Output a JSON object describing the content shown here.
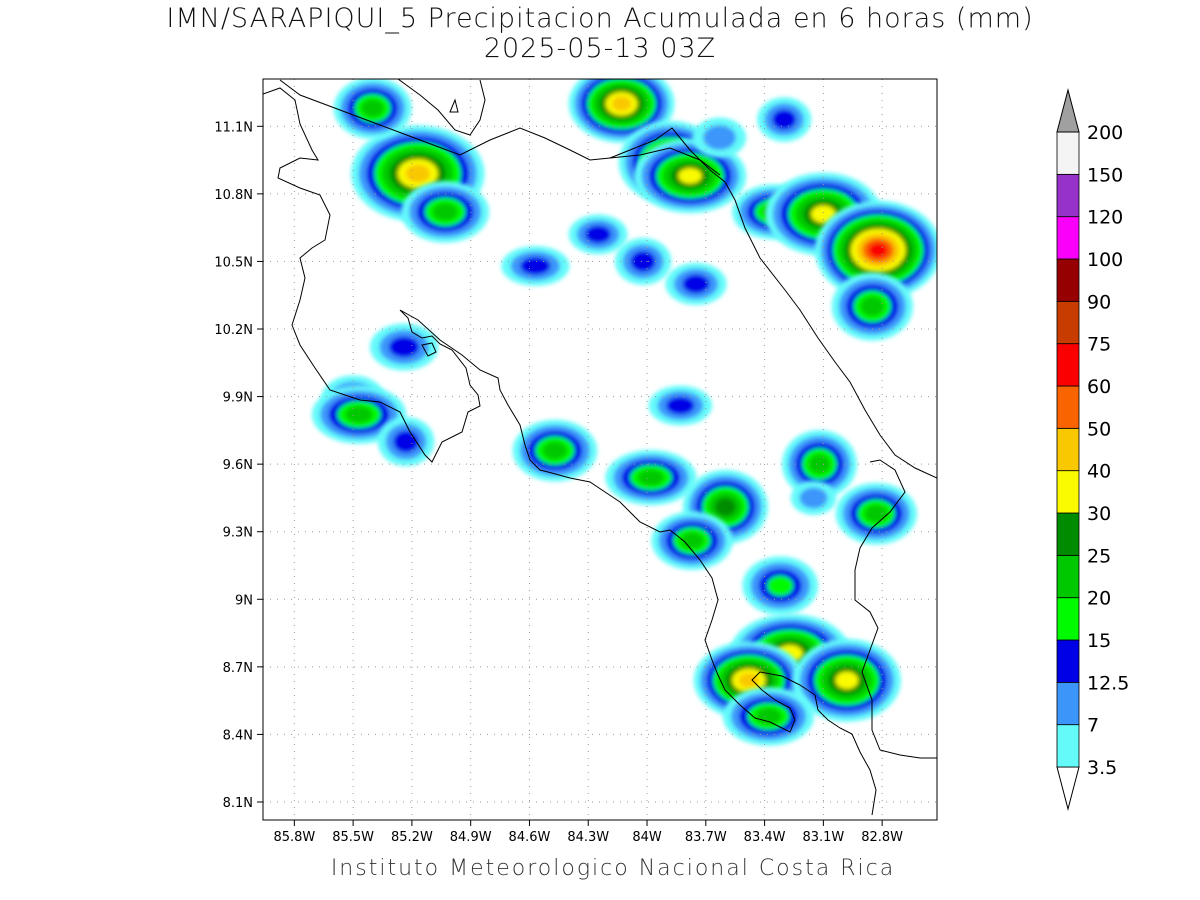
{
  "title": {
    "line1": "IMN/SARAPIQUI_5 Precipitacion Acumulada en 6 horas (mm)",
    "line2": "2025-05-13 03Z"
  },
  "footer": "Instituto Meteorologico Nacional Costa Rica",
  "map": {
    "lon_ticks": [
      "85.8W",
      "85.5W",
      "85.2W",
      "84.9W",
      "84.6W",
      "84.3W",
      "84W",
      "83.7W",
      "83.4W",
      "83.1W",
      "82.8W"
    ],
    "lat_ticks": [
      "11.1N",
      "10.8N",
      "10.5N",
      "10.2N",
      "9.9N",
      "9.6N",
      "9.3N",
      "9N",
      "8.7N",
      "8.4N",
      "8.1N"
    ],
    "grid": "dotted",
    "precip_cells": [
      {
        "lon": -84.13,
        "lat": 11.2,
        "mm": 40
      },
      {
        "lon": -83.88,
        "lat": 10.94,
        "mm": 35
      },
      {
        "lon": -83.78,
        "lat": 10.88,
        "mm": 30
      },
      {
        "lon": -85.17,
        "lat": 10.89,
        "mm": 45
      },
      {
        "lon": -85.4,
        "lat": 11.18,
        "mm": 20
      },
      {
        "lon": -83.35,
        "lat": 10.72,
        "mm": 20
      },
      {
        "lon": -83.1,
        "lat": 10.71,
        "mm": 35
      },
      {
        "lon": -82.82,
        "lat": 10.55,
        "mm": 60
      },
      {
        "lon": -82.85,
        "lat": 10.3,
        "mm": 20
      },
      {
        "lon": -85.03,
        "lat": 10.72,
        "mm": 20
      },
      {
        "lon": -84.57,
        "lat": 10.48,
        "mm": 12.5
      },
      {
        "lon": -84.02,
        "lat": 10.5,
        "mm": 12.5
      },
      {
        "lon": -83.75,
        "lat": 10.4,
        "mm": 12.5
      },
      {
        "lon": -83.63,
        "lat": 11.05,
        "mm": 10
      },
      {
        "lon": -83.3,
        "lat": 11.13,
        "mm": 12.5
      },
      {
        "lon": -84.25,
        "lat": 10.62,
        "mm": 12.5
      },
      {
        "lon": -85.5,
        "lat": 9.89,
        "mm": 12.5
      },
      {
        "lon": -85.47,
        "lat": 9.82,
        "mm": 20
      },
      {
        "lon": -85.23,
        "lat": 9.7,
        "mm": 12.5
      },
      {
        "lon": -84.47,
        "lat": 9.66,
        "mm": 20
      },
      {
        "lon": -83.98,
        "lat": 9.54,
        "mm": 20
      },
      {
        "lon": -83.6,
        "lat": 9.41,
        "mm": 25
      },
      {
        "lon": -83.77,
        "lat": 9.26,
        "mm": 20
      },
      {
        "lon": -83.32,
        "lat": 9.06,
        "mm": 15
      },
      {
        "lon": -83.27,
        "lat": 8.76,
        "mm": 35
      },
      {
        "lon": -83.48,
        "lat": 8.64,
        "mm": 45
      },
      {
        "lon": -82.98,
        "lat": 8.64,
        "mm": 30
      },
      {
        "lon": -83.38,
        "lat": 8.48,
        "mm": 20
      },
      {
        "lon": -83.12,
        "lat": 9.6,
        "mm": 20
      },
      {
        "lon": -82.83,
        "lat": 9.38,
        "mm": 20
      },
      {
        "lon": -83.83,
        "lat": 9.86,
        "mm": 12.5
      },
      {
        "lon": -85.24,
        "lat": 10.12,
        "mm": 12.5
      },
      {
        "lon": -83.15,
        "lat": 9.45,
        "mm": 10
      }
    ]
  },
  "legend": {
    "colors": [
      "#64FAFA",
      "#3C96FA",
      "#0000E6",
      "#00FA00",
      "#00C800",
      "#008C00",
      "#FAFA00",
      "#FAC800",
      "#FA6400",
      "#FA0000",
      "#C83C00",
      "#960000",
      "#FA00FA",
      "#9632C8",
      "#F4F4F4",
      "#A0A0A0"
    ],
    "labels": [
      "3.5",
      "7",
      "12.5",
      "15",
      "20",
      "25",
      "30",
      "40",
      "50",
      "60",
      "75",
      "90",
      "100",
      "120",
      "150",
      "200"
    ]
  }
}
